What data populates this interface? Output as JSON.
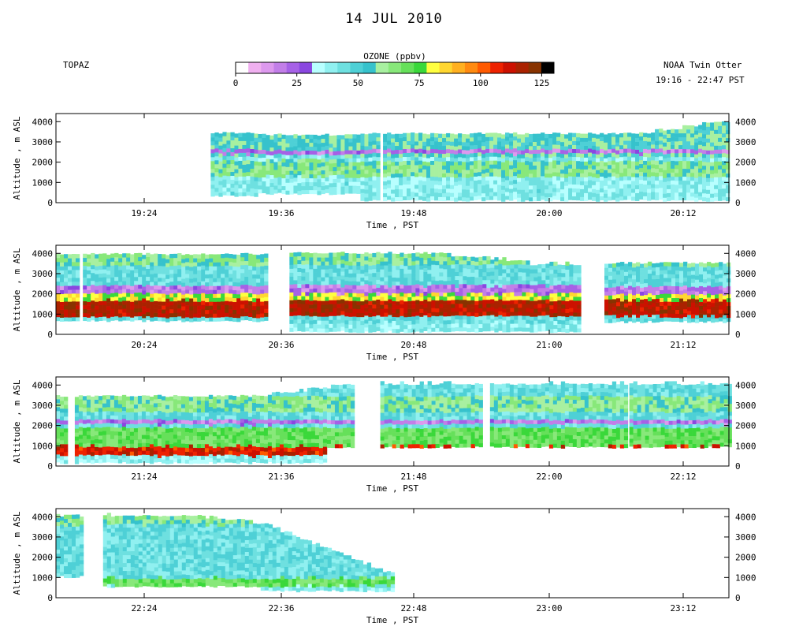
{
  "title": "14 JUL 2010",
  "site_label": "TOPAZ",
  "platform_label": "NOAA Twin Otter",
  "time_range_label": "19:16 - 22:47 PST",
  "colorbar": {
    "title": "OZONE (ppbv)",
    "ticks": [
      "0",
      "25",
      "50",
      "75",
      "100",
      "125"
    ],
    "tick_values": [
      0,
      25,
      50,
      75,
      100,
      125
    ],
    "range": [
      0,
      130
    ],
    "colors": [
      "#ffffff",
      "#f0b0f0",
      "#dd99ee",
      "#c27ee8",
      "#a661e6",
      "#8a47e0",
      "#b8ffff",
      "#90f0f0",
      "#6ee0e0",
      "#4ed0d6",
      "#36c2cc",
      "#a8f0a0",
      "#88e87a",
      "#66e05a",
      "#3ad83a",
      "#ffff40",
      "#ffd630",
      "#ffb020",
      "#ff8a10",
      "#ff5a00",
      "#ee2200",
      "#cc1100",
      "#aa2200",
      "#883300",
      "#000000"
    ]
  },
  "chart_data": [
    {
      "type": "heatmap",
      "xlabel": "Time , PST",
      "ylabel": "Altitude , m ASL",
      "ylim": [
        0,
        4400
      ],
      "yticks": [
        0,
        1000,
        2000,
        3000,
        4000
      ],
      "xticks": [
        "19:24",
        "19:36",
        "19:48",
        "20:00",
        "20:12"
      ],
      "z_variable": "ozone (ppbv)",
      "layers": [
        {
          "ppbv": 40,
          "from_alt": 0,
          "to_alt": 3300
        },
        {
          "ppbv": 55,
          "from_alt": 2200,
          "to_alt": 4000
        },
        {
          "ppbv": 20,
          "from_alt": 2300,
          "to_alt": 2500
        },
        {
          "ppbv": 60,
          "from_alt": 1200,
          "to_alt": 2000
        }
      ]
    },
    {
      "type": "heatmap",
      "xlabel": "Time , PST",
      "ylabel": "Altitude , m ASL",
      "ylim": [
        0,
        4400
      ],
      "yticks": [
        0,
        1000,
        2000,
        3000,
        4000
      ],
      "xticks": [
        "20:24",
        "20:36",
        "20:48",
        "21:00",
        "21:12"
      ],
      "z_variable": "ozone (ppbv)",
      "layers": [
        {
          "ppbv": 45,
          "from_alt": 500,
          "to_alt": 3800
        },
        {
          "ppbv": 60,
          "from_alt": 3300,
          "to_alt": 3900
        },
        {
          "ppbv": 80,
          "from_alt": 1200,
          "to_alt": 2000
        },
        {
          "ppbv": 115,
          "from_alt": 800,
          "to_alt": 1600
        },
        {
          "ppbv": 20,
          "from_alt": 1900,
          "to_alt": 2300
        }
      ]
    },
    {
      "type": "heatmap",
      "xlabel": "Time , PST",
      "ylabel": "Altitude , m ASL",
      "ylim": [
        0,
        4400
      ],
      "yticks": [
        0,
        1000,
        2000,
        3000,
        4000
      ],
      "xticks": [
        "21:24",
        "21:36",
        "21:48",
        "22:00",
        "22:12"
      ],
      "z_variable": "ozone (ppbv)",
      "layers": [
        {
          "ppbv": 45,
          "from_alt": 400,
          "to_alt": 4000
        },
        {
          "ppbv": 20,
          "from_alt": 1950,
          "to_alt": 2200
        },
        {
          "ppbv": 70,
          "from_alt": 800,
          "to_alt": 1800
        },
        {
          "ppbv": 110,
          "from_alt": 400,
          "to_alt": 900
        },
        {
          "ppbv": 60,
          "from_alt": 2600,
          "to_alt": 3400
        }
      ]
    },
    {
      "type": "heatmap",
      "xlabel": "Time , PST",
      "ylabel": "Altitude , m ASL",
      "ylim": [
        0,
        4400
      ],
      "yticks": [
        0,
        1000,
        2000,
        3000,
        4000
      ],
      "xticks": [
        "22:24",
        "22:36",
        "22:48",
        "23:00",
        "23:12"
      ],
      "z_variable": "ozone (ppbv)",
      "layers": [
        {
          "ppbv": 45,
          "from_alt": 500,
          "to_alt": 4000
        },
        {
          "ppbv": 60,
          "from_alt": 3500,
          "to_alt": 4000
        },
        {
          "ppbv": 70,
          "from_alt": 500,
          "to_alt": 900
        }
      ]
    }
  ]
}
